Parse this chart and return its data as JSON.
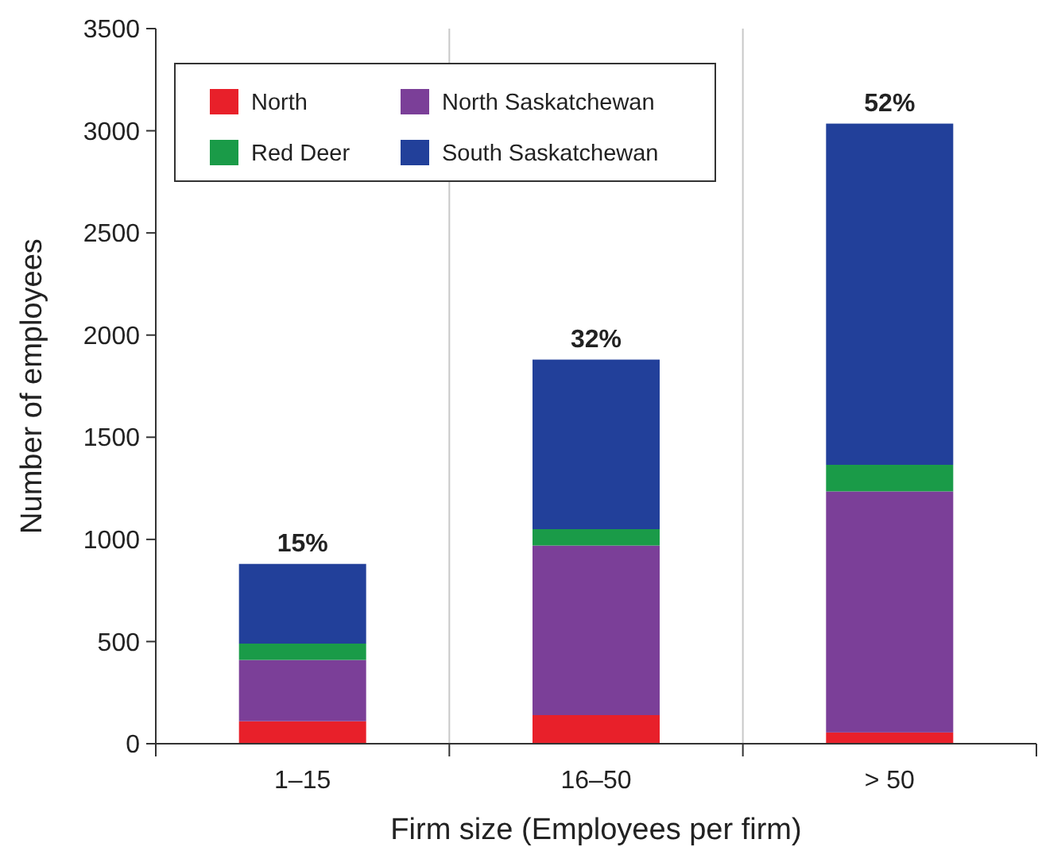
{
  "chart_data": {
    "type": "bar",
    "stacked": true,
    "xlabel": "Firm size (Employees per firm)",
    "ylabel": "Number of employees",
    "categories": [
      "1–15",
      "16–50",
      "> 50"
    ],
    "series": [
      {
        "name": "North",
        "color": "#e8202a",
        "values": [
          110,
          140,
          55
        ]
      },
      {
        "name": "North Saskatchewan",
        "color": "#7b3f98",
        "values": [
          300,
          830,
          1180
        ]
      },
      {
        "name": "Red Deer",
        "color": "#1a9b48",
        "values": [
          80,
          80,
          130
        ]
      },
      {
        "name": "South Saskatchewan",
        "color": "#22409a",
        "values": [
          390,
          830,
          1670
        ]
      }
    ],
    "ylim": [
      0,
      3500
    ],
    "yticks": [
      0,
      500,
      1000,
      1500,
      2000,
      2500,
      3000,
      3500
    ],
    "grid": "x",
    "legend": "top left",
    "annotations": [
      {
        "text": "15%",
        "x": "1–15",
        "y": 880
      },
      {
        "text": "32%",
        "x": "16–50",
        "y": 1880
      },
      {
        "text": "52%",
        "x": "> 50",
        "y": 3035
      }
    ]
  }
}
